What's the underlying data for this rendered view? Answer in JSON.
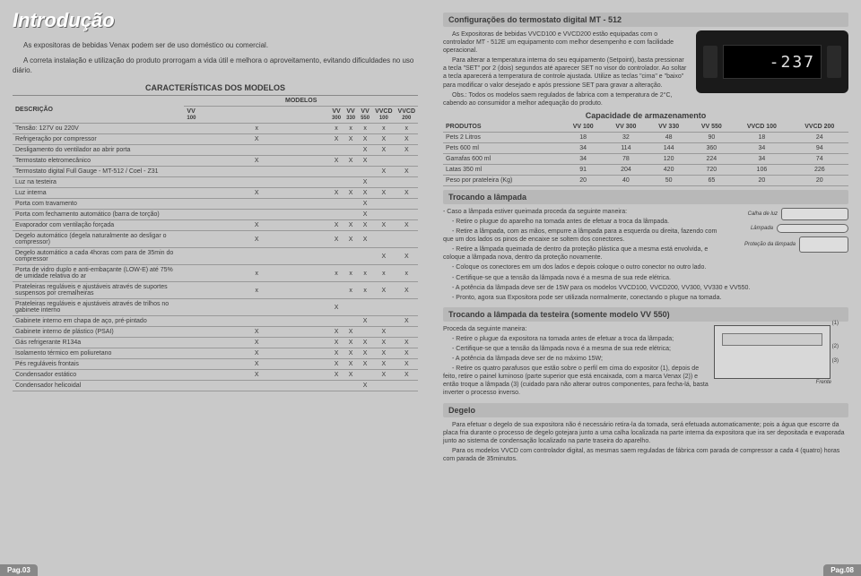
{
  "left": {
    "title": "Introdução",
    "intro1": "As expositoras de bebidas Venax podem ser de uso doméstico ou comercial.",
    "intro2": "A correta instalação e utilização do produto prorrogam a vida útil e melhora o aproveitamento, evitando dificuldades no uso diário.",
    "char_header": "CARACTERÍSTICAS DOS MODELOS",
    "models_label": "MODELOS",
    "desc_label": "DESCRIÇÃO",
    "cols": [
      {
        "l1": "VV",
        "l2": "100"
      },
      {
        "l1": "VV",
        "l2": "300"
      },
      {
        "l1": "VV",
        "l2": "330"
      },
      {
        "l1": "VV",
        "l2": "550"
      },
      {
        "l1": "VVCD",
        "l2": "100"
      },
      {
        "l1": "VVCD",
        "l2": "200"
      }
    ],
    "rows": [
      {
        "d": "Tensão: 127V ou 220V",
        "v": [
          "x",
          "x",
          "x",
          "x",
          "x",
          "x"
        ]
      },
      {
        "d": "Refrigeração por compressor",
        "v": [
          "X",
          "X",
          "X",
          "X",
          "X",
          "X"
        ]
      },
      {
        "d": "Desligamento do ventilador ao abrir porta",
        "v": [
          "",
          "",
          "",
          "X",
          "X",
          "X"
        ]
      },
      {
        "d": "Termostato eletromecânico",
        "v": [
          "X",
          "X",
          "X",
          "X",
          "",
          ""
        ]
      },
      {
        "d": "Termostato digital Full Gauge - MT-512 / Coel - Z31",
        "v": [
          "",
          "",
          "",
          "",
          "X",
          "X"
        ]
      },
      {
        "d": "Luz na testeira",
        "v": [
          "",
          "",
          "",
          "X",
          "",
          ""
        ]
      },
      {
        "d": "Luz interna",
        "v": [
          "X",
          "X",
          "X",
          "X",
          "X",
          "X"
        ]
      },
      {
        "d": "Porta com travamento",
        "v": [
          "",
          "",
          "",
          "X",
          "",
          ""
        ]
      },
      {
        "d": "Porta com fechamento automático (barra de torção)",
        "v": [
          "",
          "",
          "",
          "X",
          "",
          ""
        ]
      },
      {
        "d": "Evaporador com ventilação forçada",
        "v": [
          "X",
          "X",
          "X",
          "X",
          "X",
          "X"
        ]
      },
      {
        "d": "Degelo automático (degela naturalmente ao desligar o compressor)",
        "v": [
          "X",
          "X",
          "X",
          "X",
          "",
          ""
        ]
      },
      {
        "d": "Degelo automático a cada 4horas com para de 35min do compressor",
        "v": [
          "",
          "",
          "",
          "",
          "X",
          "X"
        ]
      },
      {
        "d": "Porta de vidro duplo e anti-embaçante (LOW-E) até 75% de umidade relativa do ar",
        "v": [
          "x",
          "x",
          "x",
          "x",
          "x",
          "x"
        ]
      },
      {
        "d": "Prateleiras reguláveis e ajustáveis através de suportes suspensos por cremalheiras",
        "v": [
          "x",
          "",
          "x",
          "x",
          "X",
          "X"
        ]
      },
      {
        "d": "Prateleiras reguláveis e ajustáveis através de trilhos no gabinete interno",
        "v": [
          "",
          "X",
          "",
          "",
          "",
          ""
        ]
      },
      {
        "d": "Gabinete interno em chapa de aço, pré-pintado",
        "v": [
          "",
          "",
          "",
          "X",
          "",
          "X"
        ]
      },
      {
        "d": "Gabinete interno de plástico (PSAI)",
        "v": [
          "X",
          "X",
          "X",
          "",
          "X",
          ""
        ]
      },
      {
        "d": "Gás refrigerante R134a",
        "v": [
          "X",
          "X",
          "X",
          "X",
          "X",
          "X"
        ]
      },
      {
        "d": "Isolamento térmico em poliuretano",
        "v": [
          "X",
          "X",
          "X",
          "X",
          "X",
          "X"
        ]
      },
      {
        "d": "Pés reguláveis frontais",
        "v": [
          "X",
          "X",
          "X",
          "X",
          "X",
          "X"
        ]
      },
      {
        "d": "Condensador estático",
        "v": [
          "X",
          "X",
          "X",
          "",
          "X",
          "X"
        ]
      },
      {
        "d": "Condensador helicoidal",
        "v": [
          "",
          "",
          "",
          "X",
          "",
          ""
        ]
      }
    ],
    "pagenum": "Pag.03"
  },
  "right": {
    "s1": {
      "title": "Configurações do termostato digital MT - 512",
      "display": "-237",
      "p1": "As Expositoras de bebidas VVCD100 e VVCD200 estão equipadas com o controlador MT - 512E um equipamento com melhor desempenho e com facilidade operacional.",
      "p2": "Para alterar a temperatura interna do seu equipamento (Setpoint), basta pressionar a tecla \"SET\" por 2 (dois) segundos até aparecer SET no visor do controlador. Ao soltar a tecla aparecerá a temperatura de controle ajustada. Utilize as teclas \"cima\" e \"baixo\" para modificar o valor desejado e após pressione SET para gravar a alteração.",
      "p3": "Obs.: Todos os modelos saem regulados de fabrica com a temperatura de 2°C, cabendo ao consumidor a melhor adequação do produto."
    },
    "cap": {
      "title": "Capacidade de armazenamento",
      "cols": [
        "PRODUTOS",
        "VV 100",
        "VV 300",
        "VV 330",
        "VV 550",
        "VVCD 100",
        "VVCD 200"
      ],
      "rows": [
        {
          "d": "Pets 2 Litros",
          "v": [
            "18",
            "32",
            "48",
            "90",
            "18",
            "24"
          ]
        },
        {
          "d": "Pets 600 ml",
          "v": [
            "34",
            "114",
            "144",
            "360",
            "34",
            "94"
          ]
        },
        {
          "d": "Garrafas 600 ml",
          "v": [
            "34",
            "78",
            "120",
            "224",
            "34",
            "74"
          ]
        },
        {
          "d": "Latas 350 ml",
          "v": [
            "91",
            "204",
            "420",
            "720",
            "106",
            "226"
          ]
        },
        {
          "d": "Peso por prateleira (Kg)",
          "v": [
            "20",
            "40",
            "50",
            "65",
            "20",
            "20"
          ]
        }
      ]
    },
    "lamp": {
      "title": "Trocando a lâmpada",
      "fig_labels": {
        "calha": "Calha de luz",
        "lampada": "Lâmpada",
        "protecao": "Proteção da lâmpada"
      },
      "p1": "- Caso a lâmpada estiver queimada proceda da seguinte maneira:",
      "p2": "- Retire o plugue do aparelho na tomada antes de efetuar a troca da lâmpada.",
      "p3": "- Retire a lâmpada, com as mãos, empurre a lâmpada para a esquerda ou direita, fazendo com que um dos lados os pinos de encaixe se soltem dos conectores.",
      "p4": "- Retire a lâmpada queimada de dentro da proteção plástica que a mesma está envolvida, e coloque a lâmpada nova, dentro da proteção novamente.",
      "p5": "- Coloque os conectores em um dos lados e depois coloque o outro conector no outro lado.",
      "p6": "- Certifique-se que a tensão da lâmpada nova é a mesma de sua rede elétrica.",
      "p7": "- A potência da lâmpada deve ser de 15W para os modelos VVCD100, VVCD200, VV300, VV330 e VV550.",
      "p8": "- Pronto, agora sua Expositora pode ser utilizada normalmente, conectando o plugue na tomada."
    },
    "test": {
      "title": "Trocando a lâmpada da testeira (somente modelo VV 550)",
      "calls": {
        "c1": "(1)",
        "c2": "(2)",
        "c3": "(3)",
        "c4": "Frente"
      },
      "p0": "Proceda da seguinte maneira:",
      "p1": "- Retire o plugue da expositora na tomada antes de efetuar a troca da lâmpada;",
      "p2": "- Certifique-se que a tensão da lâmpada nova é a mesma de sua rede elétrica;",
      "p3": "- A potência da lâmpada deve ser de no máximo 15W;",
      "p4": "- Retire os quatro parafusos que estão sobre o perfil em cima do expositor (1), depois de feito, retire o painel luminoso (parte superior que está encaixada, com a marca Venax (2)) e então troque a lâmpada (3) (cuidado para não alterar outros componentes, para fecha-lá, basta inverter o processo inverso."
    },
    "deg": {
      "title": "Degelo",
      "p1": "Para efetuar o degelo de sua expositora não é necessário retira-la da tomada, será efetuada automaticamente; pois a água que escorre da placa fria durante o processo de degelo gotejara junto a uma calha localizada na parte interna da expositora que ira ser depositada e evaporada junto ao sistema de condensação localizado na parte traseira do aparelho.",
      "p2": "Para os modelos VVCD com controlador digital, as mesmas saem reguladas de fábrica com parada de compressor a cada 4 (quatro) horas com parada de 35minutos."
    },
    "pagenum": "Pag.08"
  }
}
